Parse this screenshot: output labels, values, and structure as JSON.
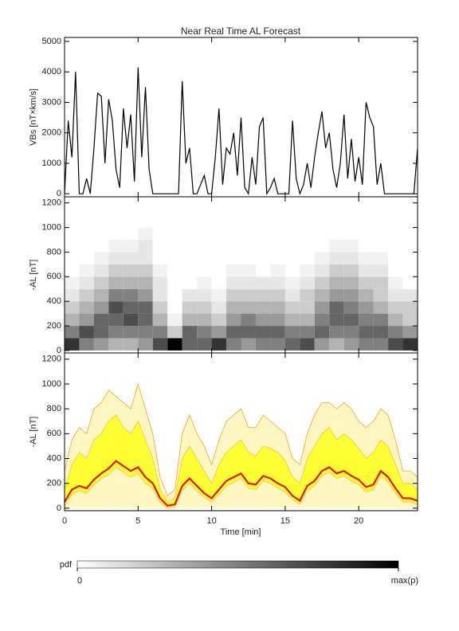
{
  "chart_data": [
    {
      "type": "line",
      "title": "Near Real Time AL Forecast",
      "ylabel": "VBs [nT×km/s]",
      "color": "#000000",
      "x": [
        0,
        0.25,
        0.5,
        0.75,
        1,
        1.25,
        1.5,
        1.75,
        2,
        2.25,
        2.5,
        2.75,
        3,
        3.25,
        3.5,
        3.75,
        4,
        4.25,
        4.5,
        4.75,
        5,
        5.25,
        5.5,
        5.75,
        6,
        6.25,
        6.5,
        6.75,
        7,
        7.25,
        7.5,
        7.75,
        8,
        8.25,
        8.5,
        8.75,
        9,
        9.25,
        9.5,
        9.75,
        10,
        10.25,
        10.5,
        10.75,
        11,
        11.25,
        11.5,
        11.75,
        12,
        12.25,
        12.5,
        12.75,
        13,
        13.25,
        13.5,
        13.75,
        14,
        14.25,
        14.5,
        14.75,
        15,
        15.25,
        15.5,
        15.75,
        16,
        16.25,
        16.5,
        16.75,
        17,
        17.25,
        17.5,
        17.75,
        18,
        18.25,
        18.5,
        18.75,
        19,
        19.25,
        19.5,
        19.75,
        20,
        20.25,
        20.5,
        20.75,
        21,
        21.25,
        21.5,
        21.75,
        22,
        22.25,
        22.5,
        22.75,
        23,
        23.25,
        23.5,
        23.75,
        24
      ],
      "values": [
        0,
        2400,
        1200,
        4000,
        0,
        0,
        500,
        0,
        1500,
        3300,
        3200,
        1000,
        3100,
        2400,
        800,
        200,
        2800,
        1500,
        2600,
        400,
        4150,
        1200,
        3500,
        800,
        0,
        0,
        0,
        0,
        0,
        0,
        0,
        0,
        3700,
        1000,
        1500,
        0,
        0,
        300,
        600,
        0,
        0,
        1200,
        2800,
        300,
        1500,
        1300,
        2000,
        600,
        2500,
        200,
        0,
        1200,
        300,
        2200,
        2500,
        0,
        200,
        500,
        0,
        0,
        0,
        0,
        2400,
        500,
        0,
        300,
        1000,
        200,
        1200,
        2000,
        2700,
        1500,
        2000,
        800,
        200,
        1000,
        2600,
        500,
        1800,
        400,
        1200,
        300,
        3000,
        2500,
        2200,
        300,
        1000,
        0,
        0,
        0,
        0,
        0,
        0,
        0,
        0,
        0,
        1500
      ],
      "xlim": [
        0,
        24
      ],
      "xticks": [
        0,
        5,
        10,
        15,
        20
      ],
      "ylim": [
        -100,
        5130
      ],
      "yticks": [
        0,
        1000,
        2000,
        3000,
        4000,
        5000
      ]
    },
    {
      "type": "heatmap",
      "ylabel": "-AL [nT]",
      "x_edges": [
        0,
        1,
        2,
        3,
        4,
        5,
        6,
        7,
        8,
        9,
        10,
        11,
        12,
        13,
        14,
        15,
        16,
        17,
        18,
        19,
        20,
        21,
        22,
        23,
        24
      ],
      "y_edges": [
        0,
        100,
        200,
        300,
        400,
        500,
        600,
        700,
        800,
        900,
        1000
      ],
      "z": [
        [
          0.8,
          0.5,
          0.3,
          0.2,
          0.1,
          0.05,
          0,
          0,
          0,
          0
        ],
        [
          0.5,
          0.7,
          0.4,
          0.3,
          0.2,
          0.1,
          0.05,
          0,
          0,
          0
        ],
        [
          0.4,
          0.6,
          0.6,
          0.4,
          0.3,
          0.2,
          0.1,
          0.05,
          0,
          0
        ],
        [
          0.3,
          0.5,
          0.6,
          0.7,
          0.5,
          0.3,
          0.2,
          0.1,
          0.05,
          0
        ],
        [
          0.3,
          0.5,
          0.7,
          0.6,
          0.5,
          0.3,
          0.2,
          0.1,
          0.05,
          0
        ],
        [
          0.4,
          0.5,
          0.6,
          0.6,
          0.4,
          0.3,
          0.2,
          0.1,
          0.1,
          0.05
        ],
        [
          0.7,
          0.5,
          0.3,
          0.2,
          0.1,
          0.1,
          0.05,
          0,
          0,
          0
        ],
        [
          1,
          0.2,
          0.05,
          0,
          0,
          0,
          0,
          0,
          0,
          0
        ],
        [
          0.6,
          0.6,
          0.3,
          0.2,
          0.1,
          0,
          0,
          0,
          0,
          0
        ],
        [
          0.6,
          0.5,
          0.3,
          0.2,
          0.1,
          0.05,
          0,
          0,
          0,
          0
        ],
        [
          0.8,
          0.4,
          0.2,
          0.1,
          0.05,
          0,
          0,
          0,
          0,
          0
        ],
        [
          0.5,
          0.6,
          0.4,
          0.3,
          0.2,
          0.1,
          0.05,
          0,
          0,
          0
        ],
        [
          0.4,
          0.6,
          0.5,
          0.3,
          0.2,
          0.1,
          0.05,
          0,
          0,
          0
        ],
        [
          0.5,
          0.6,
          0.4,
          0.3,
          0.2,
          0.1,
          0,
          0,
          0,
          0
        ],
        [
          0.5,
          0.6,
          0.4,
          0.3,
          0.2,
          0.1,
          0.05,
          0,
          0,
          0
        ],
        [
          0.6,
          0.5,
          0.3,
          0.2,
          0.1,
          0.05,
          0,
          0,
          0,
          0
        ],
        [
          0.7,
          0.5,
          0.3,
          0.2,
          0.2,
          0.1,
          0.05,
          0,
          0,
          0
        ],
        [
          0.4,
          0.6,
          0.5,
          0.4,
          0.3,
          0.2,
          0.1,
          0.05,
          0,
          0
        ],
        [
          0.3,
          0.5,
          0.6,
          0.6,
          0.4,
          0.3,
          0.2,
          0.1,
          0.05,
          0
        ],
        [
          0.4,
          0.5,
          0.6,
          0.5,
          0.4,
          0.3,
          0.2,
          0.1,
          0.05,
          0
        ],
        [
          0.5,
          0.6,
          0.5,
          0.4,
          0.3,
          0.2,
          0.1,
          0.05,
          0,
          0
        ],
        [
          0.5,
          0.6,
          0.5,
          0.3,
          0.2,
          0.2,
          0.1,
          0.05,
          0,
          0
        ],
        [
          0.7,
          0.5,
          0.3,
          0.2,
          0.1,
          0.05,
          0,
          0,
          0,
          0
        ],
        [
          0.8,
          0.4,
          0.2,
          0.2,
          0.1,
          0,
          0,
          0,
          0,
          0
        ]
      ],
      "colorbar_label": "pdf",
      "colorbar_ticks": [
        0,
        {
          "value": 1,
          "label": "max(p)"
        }
      ],
      "xlim": [
        0,
        24
      ],
      "xticks": [
        0,
        5,
        10,
        15,
        20
      ],
      "ylim": [
        -20,
        1250
      ],
      "yticks": [
        0,
        200,
        400,
        600,
        800,
        1000,
        1200
      ]
    },
    {
      "type": "band",
      "ylabel": "-AL [nT]",
      "xlabel": "Time [min]",
      "x": [
        0,
        0.5,
        1,
        1.5,
        2,
        2.5,
        3,
        3.5,
        4,
        4.5,
        5,
        5.5,
        6,
        6.5,
        7,
        7.5,
        8,
        8.5,
        9,
        9.5,
        10,
        10.5,
        11,
        11.5,
        12,
        12.5,
        13,
        13.5,
        14,
        14.5,
        15,
        15.5,
        16,
        16.5,
        17,
        17.5,
        18,
        18.5,
        19,
        19.5,
        20,
        20.5,
        21,
        21.5,
        22,
        22.5,
        23,
        23.5,
        24
      ],
      "series": [
        {
          "color": "#f5a623",
          "values": [
            300,
            550,
            650,
            600,
            800,
            850,
            950,
            900,
            850,
            800,
            1000,
            800,
            600,
            250,
            100,
            150,
            600,
            750,
            600,
            500,
            350,
            550,
            700,
            750,
            800,
            650,
            650,
            750,
            700,
            650,
            600,
            400,
            350,
            600,
            750,
            850,
            850,
            800,
            850,
            800,
            700,
            650,
            700,
            800,
            750,
            550,
            300,
            300,
            250
          ]
        },
        {
          "color": "#ffff33",
          "values": [
            150,
            350,
            450,
            400,
            550,
            600,
            700,
            750,
            650,
            600,
            700,
            550,
            400,
            150,
            50,
            80,
            400,
            500,
            400,
            300,
            200,
            350,
            450,
            500,
            550,
            450,
            420,
            500,
            480,
            450,
            380,
            250,
            200,
            400,
            500,
            600,
            650,
            550,
            600,
            550,
            480,
            400,
            450,
            550,
            500,
            350,
            200,
            200,
            150
          ]
        },
        {
          "color": "#ffff33",
          "values": [
            20,
            110,
            140,
            120,
            190,
            240,
            270,
            330,
            290,
            250,
            280,
            200,
            160,
            50,
            0,
            10,
            140,
            200,
            140,
            90,
            50,
            110,
            180,
            210,
            240,
            160,
            150,
            220,
            200,
            160,
            130,
            70,
            30,
            140,
            180,
            260,
            290,
            240,
            260,
            220,
            190,
            130,
            150,
            260,
            210,
            120,
            50,
            50,
            30
          ]
        },
        {
          "color": "#e8141c",
          "values": [
            50,
            150,
            180,
            160,
            230,
            280,
            320,
            380,
            340,
            300,
            330,
            250,
            200,
            80,
            20,
            30,
            180,
            240,
            180,
            120,
            80,
            150,
            220,
            250,
            280,
            200,
            190,
            260,
            240,
            200,
            170,
            100,
            60,
            180,
            220,
            300,
            330,
            280,
            300,
            260,
            230,
            170,
            190,
            300,
            250,
            160,
            80,
            80,
            60
          ]
        }
      ],
      "xlim": [
        0,
        24
      ],
      "xticks": [
        0,
        5,
        10,
        15,
        20
      ],
      "ylim": [
        -20,
        1250
      ],
      "yticks": [
        0,
        200,
        400,
        600,
        800,
        1000,
        1200
      ]
    }
  ]
}
